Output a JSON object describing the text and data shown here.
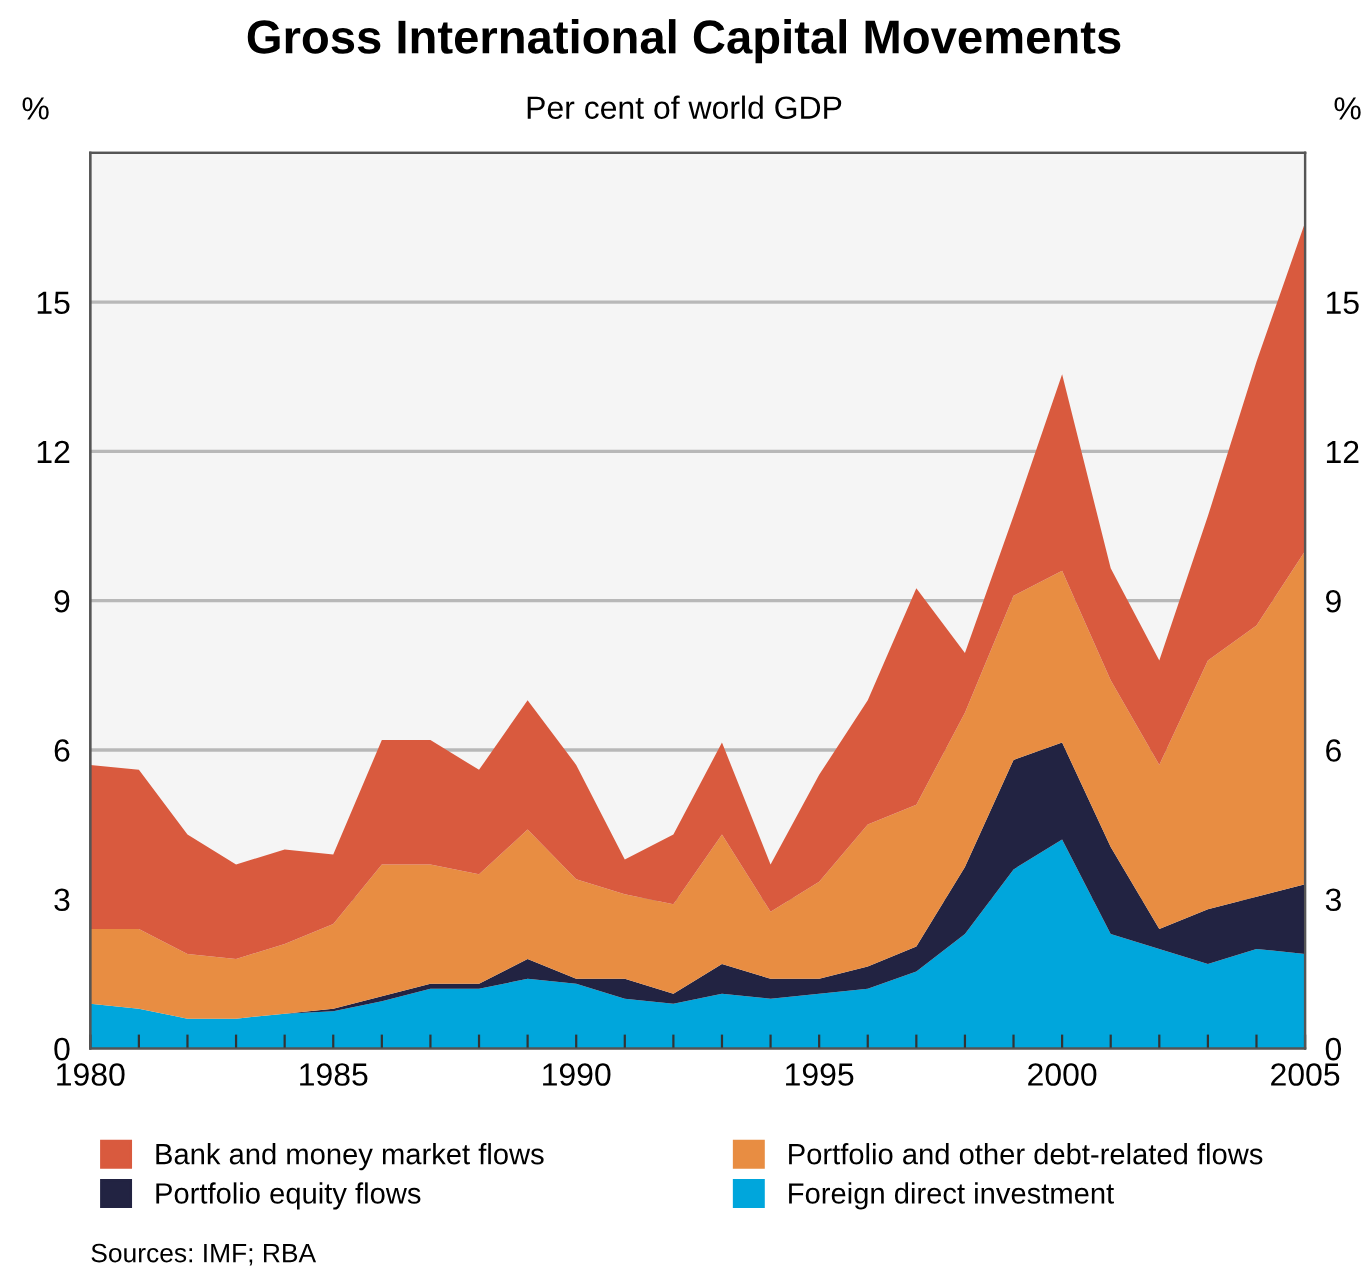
{
  "chart_data": {
    "type": "area",
    "stacked": true,
    "title": "Gross International Capital Movements",
    "subtitle": "Per cent of world GDP",
    "ylabel": "%",
    "y2label": "%",
    "x": [
      1980,
      1981,
      1982,
      1983,
      1984,
      1985,
      1986,
      1987,
      1988,
      1989,
      1990,
      1991,
      1992,
      1993,
      1994,
      1995,
      1996,
      1997,
      1998,
      1999,
      2000,
      2001,
      2002,
      2003,
      2004,
      2005
    ],
    "series": [
      {
        "name": "Foreign direct investment",
        "color": "#00a6dc",
        "values": [
          0.9,
          0.8,
          0.6,
          0.6,
          0.7,
          0.75,
          0.95,
          1.2,
          1.2,
          1.4,
          1.3,
          1.0,
          0.9,
          1.1,
          1.0,
          1.1,
          1.2,
          1.55,
          2.3,
          3.6,
          4.2,
          2.3,
          2.0,
          1.7,
          2.0,
          1.9
        ]
      },
      {
        "name": "Portfolio equity flows",
        "color": "#222342",
        "values": [
          0,
          0,
          0,
          0,
          0,
          0.05,
          0.1,
          0.1,
          0.1,
          0.4,
          0.1,
          0.4,
          0.2,
          0.6,
          0.4,
          0.3,
          0.45,
          0.5,
          1.35,
          2.2,
          1.95,
          1.75,
          0.4,
          1.1,
          1.05,
          1.4
        ]
      },
      {
        "name": "Portfolio and other debt-related flows",
        "color": "#e88d42",
        "values": [
          1.5,
          1.6,
          1.3,
          1.2,
          1.4,
          1.7,
          2.65,
          2.4,
          2.2,
          2.6,
          2.0,
          1.7,
          1.8,
          2.6,
          1.35,
          1.95,
          2.85,
          2.85,
          3.1,
          3.3,
          3.45,
          3.35,
          3.3,
          5.0,
          5.45,
          6.7
        ]
      },
      {
        "name": "Bank and money market flows",
        "color": "#d95a3e",
        "values": [
          3.3,
          3.2,
          2.4,
          1.9,
          1.9,
          1.4,
          2.5,
          2.5,
          2.1,
          2.6,
          2.3,
          0.7,
          1.4,
          1.85,
          0.95,
          2.15,
          2.5,
          4.35,
          1.2,
          1.6,
          3.95,
          2.25,
          2.1,
          2.9,
          5.3,
          6.6
        ]
      }
    ],
    "xlim": [
      1980,
      2005
    ],
    "xticks": [
      1980,
      {
        "value": 1981,
        "label": null
      },
      {
        "value": 1982,
        "label": null
      },
      {
        "value": 1983,
        "label": null
      },
      {
        "value": 1984,
        "label": null
      },
      1985,
      {
        "value": 1986,
        "label": null
      },
      {
        "value": 1987,
        "label": null
      },
      {
        "value": 1988,
        "label": null
      },
      {
        "value": 1989,
        "label": null
      },
      1990,
      {
        "value": 1991,
        "label": null
      },
      {
        "value": 1992,
        "label": null
      },
      {
        "value": 1993,
        "label": null
      },
      {
        "value": 1994,
        "label": null
      },
      1995,
      {
        "value": 1996,
        "label": null
      },
      {
        "value": 1997,
        "label": null
      },
      {
        "value": 1998,
        "label": null
      },
      {
        "value": 1999,
        "label": null
      },
      2000,
      {
        "value": 2001,
        "label": null
      },
      {
        "value": 2002,
        "label": null
      },
      {
        "value": 2003,
        "label": null
      },
      {
        "value": 2004,
        "label": null
      },
      2005
    ],
    "ylim": [
      0,
      18
    ],
    "yticks": [
      0,
      3,
      6,
      9,
      12,
      15
    ],
    "y2lim": [
      0,
      18
    ],
    "y2ticks": [
      0,
      3,
      6,
      9,
      12,
      15
    ],
    "grid": "y",
    "legend": "bottom",
    "annotations": [
      "Sources: IMF; RBA"
    ]
  }
}
